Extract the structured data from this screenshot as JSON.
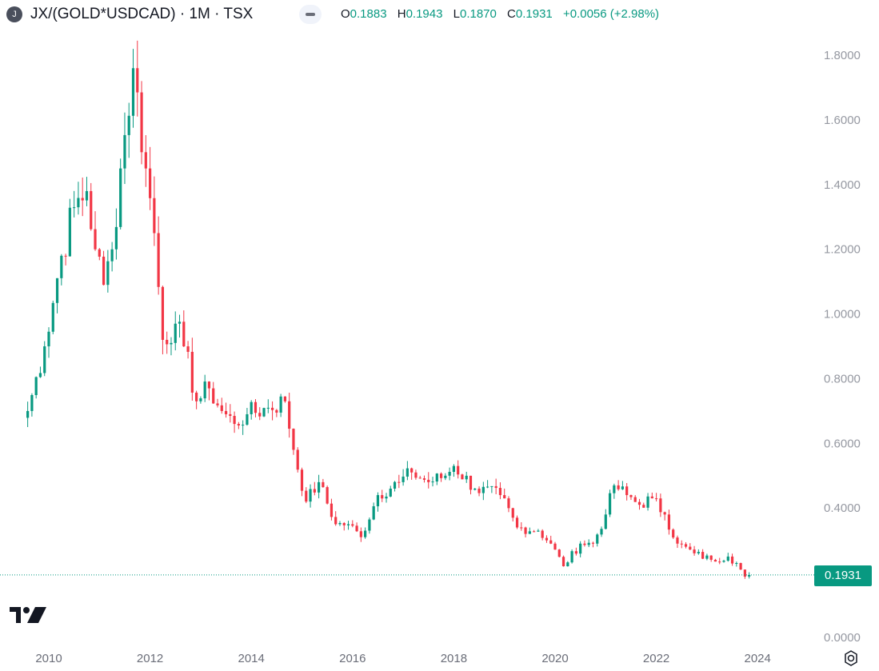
{
  "header": {
    "symbol_icon": "J",
    "title": "JX/(GOLD*USDCAD) · 1M · TSX",
    "ohlc": {
      "o_label": "O",
      "o": "0.1883",
      "h_label": "H",
      "h": "0.1943",
      "l_label": "L",
      "l": "0.1870",
      "c_label": "C",
      "c": "0.1931",
      "change": "+0.0056 (+2.98%)"
    }
  },
  "colors": {
    "up": "#089981",
    "down": "#f23645",
    "last_price_line": "#089981",
    "axis_text": "#9598a1"
  },
  "last_price_label": "0.1931",
  "icons": {
    "logo": "tradingview-logo-icon",
    "settings": "settings-icon",
    "collapse": "collapse-icon"
  },
  "chart_data": {
    "type": "candlestick",
    "title": "JX/(GOLD*USDCAD) · 1M · TSX",
    "interval": "1M",
    "y_ticks": [
      "1.8000",
      "1.6000",
      "1.4000",
      "1.2000",
      "1.0000",
      "0.8000",
      "0.6000",
      "0.4000",
      "0.0000"
    ],
    "x_ticks": [
      "2010",
      "2012",
      "2014",
      "2016",
      "2018",
      "2020",
      "2022",
      "2024"
    ],
    "ylim": [
      0,
      1.8
    ],
    "last_price": 0.1931,
    "grid": false,
    "anchors": [
      [
        "2009-08",
        0.7
      ],
      [
        "2009-12",
        0.9
      ],
      [
        "2010-04",
        1.18
      ],
      [
        "2010-07",
        1.33
      ],
      [
        "2010-10",
        1.38
      ],
      [
        "2010-12",
        1.2
      ],
      [
        "2011-02",
        1.09
      ],
      [
        "2011-04",
        1.2
      ],
      [
        "2011-06",
        1.45
      ],
      [
        "2011-09",
        1.76
      ],
      [
        "2011-12",
        1.45
      ],
      [
        "2012-02",
        1.25
      ],
      [
        "2012-04",
        0.92
      ],
      [
        "2012-07",
        0.97
      ],
      [
        "2012-09",
        0.9
      ],
      [
        "2012-12",
        0.73
      ],
      [
        "2013-03",
        0.77
      ],
      [
        "2013-06",
        0.7
      ],
      [
        "2013-09",
        0.66
      ],
      [
        "2013-12",
        0.69
      ],
      [
        "2014-05",
        0.71
      ],
      [
        "2014-09",
        0.73
      ],
      [
        "2014-11",
        0.58
      ],
      [
        "2015-02",
        0.42
      ],
      [
        "2015-05",
        0.48
      ],
      [
        "2015-09",
        0.35
      ],
      [
        "2015-12",
        0.35
      ],
      [
        "2016-03",
        0.31
      ],
      [
        "2016-07",
        0.44
      ],
      [
        "2016-12",
        0.48
      ],
      [
        "2017-03",
        0.51
      ],
      [
        "2017-07",
        0.48
      ],
      [
        "2017-11",
        0.5
      ],
      [
        "2018-01",
        0.53
      ],
      [
        "2018-06",
        0.46
      ],
      [
        "2018-12",
        0.44
      ],
      [
        "2019-04",
        0.34
      ],
      [
        "2019-09",
        0.33
      ],
      [
        "2019-12",
        0.29
      ],
      [
        "2020-03",
        0.22
      ],
      [
        "2020-07",
        0.29
      ],
      [
        "2020-10",
        0.29
      ],
      [
        "2021-01",
        0.38
      ],
      [
        "2021-03",
        0.47
      ],
      [
        "2021-06",
        0.44
      ],
      [
        "2021-09",
        0.41
      ],
      [
        "2021-12",
        0.43
      ],
      [
        "2022-03",
        0.38
      ],
      [
        "2022-06",
        0.29
      ],
      [
        "2022-10",
        0.26
      ],
      [
        "2023-02",
        0.24
      ],
      [
        "2023-06",
        0.25
      ],
      [
        "2023-08",
        0.23
      ],
      [
        "2023-10",
        0.188
      ],
      [
        "2023-11",
        0.1931
      ]
    ]
  }
}
